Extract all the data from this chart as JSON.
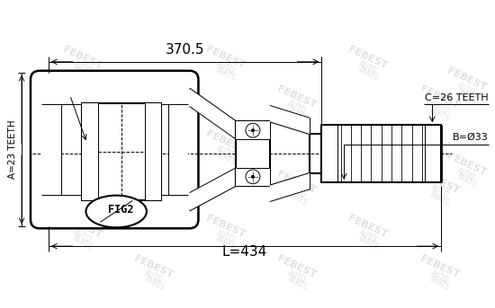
{
  "bg_color": "#ffffff",
  "line_color": "#000000",
  "dim_370_5": "370.5",
  "dim_434": "L=434",
  "dim_A": "A=23 TEETH",
  "dim_B": "B=Ø33",
  "dim_C": "C=26 TEETH",
  "fig_label": "FIG2",
  "fig_size": [
    5.5,
    3.43
  ],
  "dpi": 100,
  "lw": 1.5,
  "thin_lw": 0.7,
  "hatch_lw": 0.5
}
